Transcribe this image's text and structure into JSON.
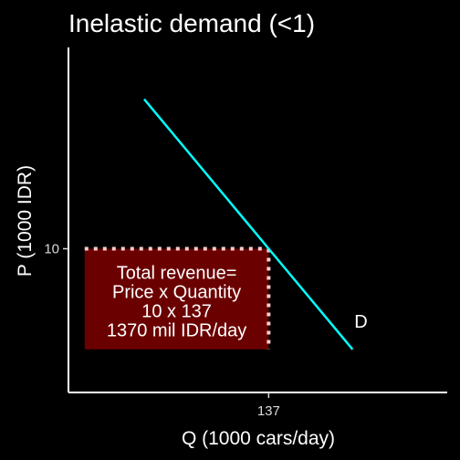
{
  "chart_data": {
    "type": "line",
    "title": "Inelastic demand (<1)",
    "xlabel": "Q (1000 cars/day)",
    "ylabel": "P (1000 IDR)",
    "xlim": [
      100,
      170
    ],
    "ylim": [
      0,
      24
    ],
    "grid": false,
    "x_ticks": [
      {
        "value": 137,
        "label": "137"
      }
    ],
    "y_ticks": [
      {
        "value": 10,
        "label": "10"
      }
    ],
    "series": [
      {
        "label": "D",
        "color": "#00ffff",
        "points": [
          [
            114,
            20.4
          ],
          [
            137,
            10.0
          ],
          [
            152.5,
            3.0
          ]
        ]
      }
    ],
    "revenue_box": {
      "x0": 103,
      "x1": 137,
      "y0": 3.0,
      "y1": 10,
      "fill": "#6b0000",
      "border_color": "#ffcccc",
      "lines": [
        "Total revenue=",
        "Price x Quantity",
        "10 x 137",
        "1370 mil IDR/day"
      ]
    }
  }
}
